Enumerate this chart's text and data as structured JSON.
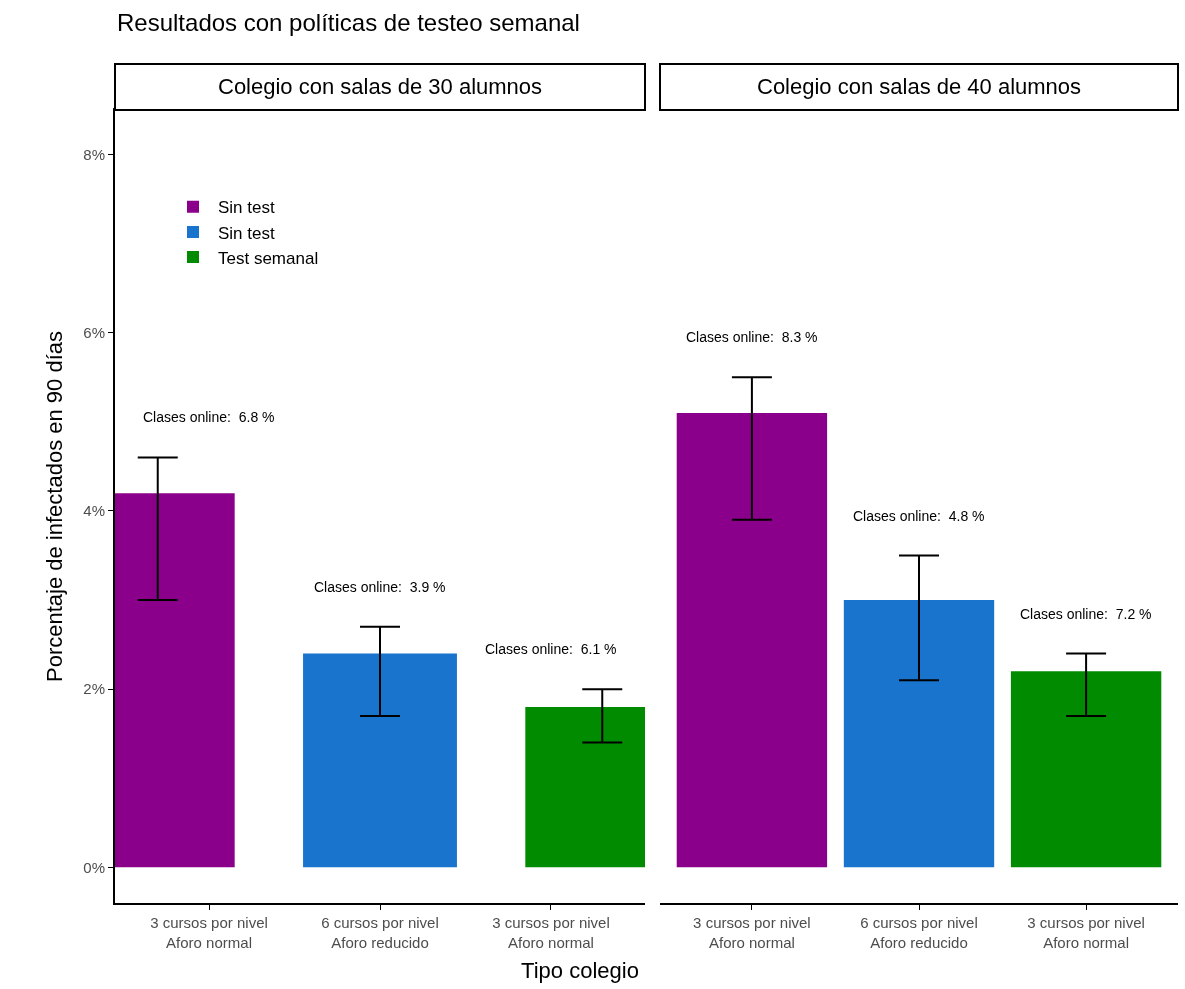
{
  "chart_data": [
    {
      "type": "bar",
      "title": "Resultados con políticas de testeo semanal",
      "subtitle": "Colegio con salas de 30 alumnos",
      "xlabel": "Tipo colegio",
      "ylabel": "Porcentaje de infectados en 90 días",
      "categories": [
        "3 cursos por nivel\nAforo normal",
        "6 cursos por nivel\nAforo reducido",
        "3 cursos por nivel\nAforo normal"
      ],
      "series": [
        {
          "name": "Sin test",
          "color": "#8b008b",
          "values": [
            4.2,
            null,
            null
          ],
          "errors": [
            [
              3.0,
              4.6
            ],
            null,
            null
          ]
        },
        {
          "name": "Sin test",
          "color": "#1874cd",
          "values": [
            null,
            2.4,
            null
          ],
          "errors": [
            null,
            [
              1.7,
              2.7
            ],
            null
          ]
        },
        {
          "name": "Test semanal",
          "color": "#008b00",
          "values": [
            null,
            null,
            1.8
          ],
          "errors": [
            null,
            null,
            [
              1.4,
              2.0
            ]
          ]
        }
      ],
      "ylim": [
        -0.4,
        8.5
      ],
      "yticks": [
        {
          "value": 0,
          "label": "0%"
        },
        {
          "value": 2,
          "label": "2%"
        },
        {
          "value": 4,
          "label": "4%"
        },
        {
          "value": 6,
          "label": "6%"
        },
        {
          "value": 8,
          "label": "8%"
        }
      ],
      "annotations": [
        "Clases online:  6.8 %",
        "Clases online:  3.9 %",
        "Clases online:  6.1 %"
      ],
      "legend": "top left",
      "grid": false
    },
    {
      "type": "bar",
      "subtitle": "Colegio con salas de 40 alumnos",
      "categories": [
        "3 cursos por nivel\nAforo normal",
        "6 cursos por nivel\nAforo reducido",
        "3 cursos por nivel\nAforo normal"
      ],
      "values": [
        5.1,
        3.0,
        2.2
      ],
      "colors": [
        "#8b008b",
        "#1874cd",
        "#008b00"
      ],
      "errors": [
        [
          3.9,
          5.5
        ],
        [
          2.1,
          3.5
        ],
        [
          1.7,
          2.4
        ]
      ],
      "ylim": [
        -0.4,
        8.5
      ],
      "annotations": [
        "Clases online:  8.3 %",
        "Clases online:  4.8 %",
        "Clases online:  7.2 %"
      ],
      "tick_labels": "x",
      "grid": false
    }
  ]
}
